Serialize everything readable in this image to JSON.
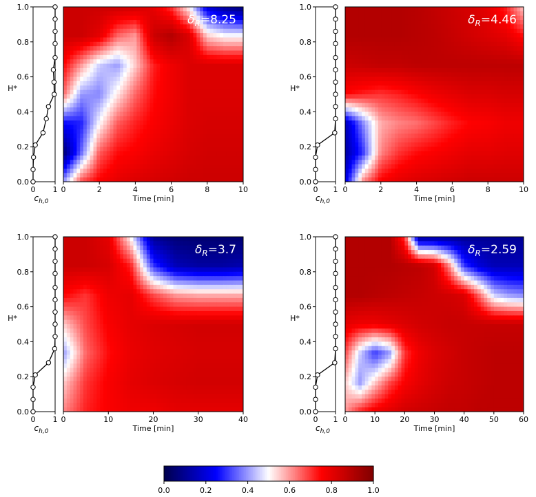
{
  "chart_data": {
    "type": "heatmap",
    "y_axis_label": "H*",
    "profile_xlabel_main": "c",
    "profile_xlabel_sub": "h,0",
    "time_axis_label": "Time [min]",
    "y_ticks": [
      "0.0",
      "0.2",
      "0.4",
      "0.6",
      "0.8",
      "1.0"
    ],
    "profile_ticks": [
      "0",
      "1"
    ],
    "colorscale": {
      "min": 0.0,
      "max": 1.0,
      "ticks": [
        "0.0",
        "0.2",
        "0.4",
        "0.6",
        "0.8",
        "1.0"
      ],
      "colors": [
        "#00004c",
        "#0000ff",
        "#ffffff",
        "#ff0000",
        "#800000"
      ]
    },
    "panels": [
      {
        "id": "a",
        "delta_symbol": "δ",
        "delta_sub": "R",
        "delta_value": "=8.25",
        "time_max": 10,
        "time_ticks": [
          "0",
          "2",
          "4",
          "6",
          "8",
          "10"
        ],
        "initial_profile": [
          {
            "H": 0.0,
            "c": 0.0
          },
          {
            "H": 0.07,
            "c": 0.0
          },
          {
            "H": 0.14,
            "c": 0.02
          },
          {
            "H": 0.21,
            "c": 0.1
          },
          {
            "H": 0.28,
            "c": 0.45
          },
          {
            "H": 0.36,
            "c": 0.6
          },
          {
            "H": 0.43,
            "c": 0.7
          },
          {
            "H": 0.5,
            "c": 0.96
          },
          {
            "H": 0.57,
            "c": 0.95
          },
          {
            "H": 0.64,
            "c": 0.92
          },
          {
            "H": 0.71,
            "c": 1.0
          },
          {
            "H": 0.79,
            "c": 1.0
          },
          {
            "H": 0.86,
            "c": 1.0
          },
          {
            "H": 0.93,
            "c": 1.0
          },
          {
            "H": 1.0,
            "c": 1.0
          }
        ],
        "field": [
          [
            0.85,
            0.85,
            0.85,
            0.85,
            0.84,
            0.8,
            0.7,
            0.5,
            0.2,
            0.1,
            0.05
          ],
          [
            0.85,
            0.85,
            0.8,
            0.65,
            0.6,
            0.85,
            0.9,
            0.82,
            0.55,
            0.5,
            0.5
          ],
          [
            0.75,
            0.6,
            0.45,
            0.4,
            0.55,
            0.72,
            0.78,
            0.82,
            0.82,
            0.82,
            0.82
          ],
          [
            0.65,
            0.4,
            0.38,
            0.52,
            0.65,
            0.74,
            0.78,
            0.82,
            0.82,
            0.82,
            0.82
          ],
          [
            0.25,
            0.28,
            0.5,
            0.66,
            0.72,
            0.76,
            0.79,
            0.82,
            0.83,
            0.83,
            0.83
          ],
          [
            0.05,
            0.35,
            0.66,
            0.74,
            0.76,
            0.79,
            0.81,
            0.83,
            0.84,
            0.84,
            0.84
          ],
          [
            0.4,
            0.68,
            0.76,
            0.8,
            0.82,
            0.83,
            0.84,
            0.85,
            0.85,
            0.85,
            0.85
          ]
        ]
      },
      {
        "id": "b",
        "delta_symbol": "δ",
        "delta_sub": "R",
        "delta_value": "=4.46",
        "time_max": 10,
        "time_ticks": [
          "0",
          "2",
          "4",
          "6",
          "8",
          "10"
        ],
        "initial_profile": [
          {
            "H": 0.0,
            "c": 0.0
          },
          {
            "H": 0.07,
            "c": 0.0
          },
          {
            "H": 0.14,
            "c": 0.0
          },
          {
            "H": 0.21,
            "c": 0.1
          },
          {
            "H": 0.28,
            "c": 0.96
          },
          {
            "H": 0.36,
            "c": 1.0
          },
          {
            "H": 0.43,
            "c": 1.0
          },
          {
            "H": 0.5,
            "c": 1.0
          },
          {
            "H": 0.57,
            "c": 1.0
          },
          {
            "H": 0.64,
            "c": 1.0
          },
          {
            "H": 0.71,
            "c": 1.0
          },
          {
            "H": 0.79,
            "c": 1.0
          },
          {
            "H": 0.86,
            "c": 1.0
          },
          {
            "H": 0.93,
            "c": 1.0
          },
          {
            "H": 1.0,
            "c": 1.0
          }
        ],
        "field": [
          [
            0.9,
            0.9,
            0.9,
            0.9,
            0.89,
            0.87,
            0.85,
            0.83,
            0.8,
            0.72,
            0.55
          ],
          [
            0.9,
            0.9,
            0.9,
            0.9,
            0.89,
            0.88,
            0.86,
            0.84,
            0.82,
            0.8,
            0.74
          ],
          [
            0.85,
            0.86,
            0.87,
            0.87,
            0.88,
            0.88,
            0.88,
            0.88,
            0.88,
            0.88,
            0.88
          ],
          [
            0.75,
            0.72,
            0.7,
            0.72,
            0.75,
            0.78,
            0.8,
            0.82,
            0.82,
            0.83,
            0.83
          ],
          [
            0.15,
            0.38,
            0.58,
            0.62,
            0.64,
            0.68,
            0.72,
            0.75,
            0.76,
            0.78,
            0.78
          ],
          [
            0.12,
            0.3,
            0.62,
            0.7,
            0.74,
            0.76,
            0.78,
            0.8,
            0.8,
            0.81,
            0.81
          ],
          [
            0.2,
            0.62,
            0.76,
            0.8,
            0.82,
            0.83,
            0.84,
            0.85,
            0.85,
            0.85,
            0.85
          ]
        ]
      },
      {
        "id": "c",
        "delta_symbol": "δ",
        "delta_sub": "R",
        "delta_value": "=3.7",
        "time_max": 40,
        "time_ticks": [
          "0",
          "10",
          "20",
          "30",
          "40"
        ],
        "initial_profile": [
          {
            "H": 0.0,
            "c": 0.0
          },
          {
            "H": 0.07,
            "c": 0.0
          },
          {
            "H": 0.14,
            "c": 0.0
          },
          {
            "H": 0.21,
            "c": 0.1
          },
          {
            "H": 0.28,
            "c": 0.7
          },
          {
            "H": 0.36,
            "c": 0.98
          },
          {
            "H": 0.43,
            "c": 1.0
          },
          {
            "H": 0.5,
            "c": 1.0
          },
          {
            "H": 0.57,
            "c": 1.0
          },
          {
            "H": 0.64,
            "c": 1.0
          },
          {
            "H": 0.71,
            "c": 1.0
          },
          {
            "H": 0.79,
            "c": 1.0
          },
          {
            "H": 0.86,
            "c": 1.0
          },
          {
            "H": 0.93,
            "c": 1.0
          },
          {
            "H": 1.0,
            "c": 1.0
          }
        ],
        "field": [
          [
            0.85,
            0.85,
            0.8,
            0.5,
            0.1,
            0.06,
            0.05,
            0.05,
            0.05
          ],
          [
            0.85,
            0.85,
            0.83,
            0.72,
            0.3,
            0.15,
            0.12,
            0.12,
            0.14
          ],
          [
            0.75,
            0.7,
            0.78,
            0.8,
            0.68,
            0.6,
            0.58,
            0.58,
            0.58
          ],
          [
            0.55,
            0.68,
            0.76,
            0.8,
            0.82,
            0.83,
            0.84,
            0.84,
            0.84
          ],
          [
            0.4,
            0.65,
            0.74,
            0.79,
            0.81,
            0.82,
            0.83,
            0.83,
            0.83
          ],
          [
            0.55,
            0.7,
            0.76,
            0.8,
            0.82,
            0.83,
            0.84,
            0.84,
            0.84
          ],
          [
            0.62,
            0.72,
            0.76,
            0.78,
            0.78,
            0.8,
            0.8,
            0.8,
            0.8
          ]
        ]
      },
      {
        "id": "d",
        "delta_symbol": "δ",
        "delta_sub": "R",
        "delta_value": "=2.59",
        "time_max": 60,
        "time_ticks": [
          "0",
          "10",
          "20",
          "30",
          "40",
          "50",
          "60"
        ],
        "initial_profile": [
          {
            "H": 0.0,
            "c": 0.0
          },
          {
            "H": 0.07,
            "c": 0.0
          },
          {
            "H": 0.14,
            "c": 0.0
          },
          {
            "H": 0.21,
            "c": 0.1
          },
          {
            "H": 0.28,
            "c": 0.96
          },
          {
            "H": 0.36,
            "c": 1.0
          },
          {
            "H": 0.43,
            "c": 1.0
          },
          {
            "H": 0.5,
            "c": 1.0
          },
          {
            "H": 0.57,
            "c": 1.0
          },
          {
            "H": 0.64,
            "c": 1.0
          },
          {
            "H": 0.71,
            "c": 1.0
          },
          {
            "H": 0.79,
            "c": 1.0
          },
          {
            "H": 0.86,
            "c": 1.0
          },
          {
            "H": 0.93,
            "c": 1.0
          },
          {
            "H": 1.0,
            "c": 1.0
          }
        ],
        "field": [
          [
            0.9,
            0.9,
            0.9,
            0.9,
            0.7,
            0.1,
            0.1,
            0.1,
            0.1,
            0.1,
            0.1,
            0.1,
            0.1
          ],
          [
            0.9,
            0.9,
            0.9,
            0.9,
            0.89,
            0.88,
            0.84,
            0.62,
            0.3,
            0.2,
            0.15,
            0.15,
            0.15
          ],
          [
            0.9,
            0.9,
            0.89,
            0.88,
            0.87,
            0.86,
            0.85,
            0.84,
            0.82,
            0.65,
            0.45,
            0.4,
            0.38
          ],
          [
            0.8,
            0.78,
            0.78,
            0.8,
            0.82,
            0.84,
            0.85,
            0.86,
            0.86,
            0.86,
            0.86,
            0.86,
            0.86
          ],
          [
            0.68,
            0.45,
            0.3,
            0.4,
            0.7,
            0.78,
            0.82,
            0.84,
            0.86,
            0.87,
            0.88,
            0.88,
            0.88
          ],
          [
            0.55,
            0.4,
            0.55,
            0.68,
            0.76,
            0.8,
            0.83,
            0.85,
            0.86,
            0.87,
            0.88,
            0.88,
            0.88
          ],
          [
            0.6,
            0.72,
            0.78,
            0.81,
            0.84,
            0.85,
            0.86,
            0.87,
            0.87,
            0.88,
            0.88,
            0.88,
            0.88
          ]
        ]
      }
    ]
  }
}
